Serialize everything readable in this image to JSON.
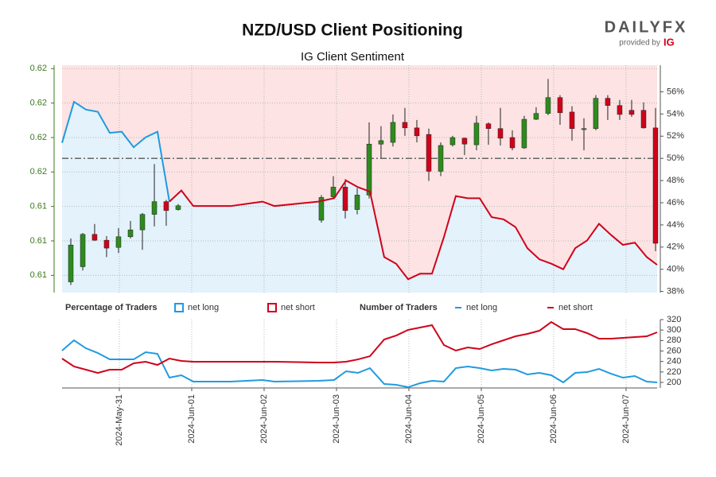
{
  "logo": {
    "brand": "DAILYFX",
    "provided_by": "provided by",
    "ig": "IG"
  },
  "chart_data": [
    {
      "type": "candlestick",
      "title": "NZD/USD Client Positioning",
      "subtitle": "IG Client Sentiment",
      "legend_title": "Percentage of Traders",
      "up_color": "#2e8b1e",
      "down_color": "#d0021b",
      "xlim": [
        0.209,
        8.429
      ],
      "ylim": [
        0.6125,
        0.6191
      ],
      "yticks": [
        {
          "value": 0.619,
          "label": "0.62"
        },
        {
          "value": 0.618,
          "label": "0.62"
        },
        {
          "value": 0.617,
          "label": "0.62"
        },
        {
          "value": 0.616,
          "label": "0.62"
        },
        {
          "value": 0.615,
          "label": "0.61"
        },
        {
          "value": 0.614,
          "label": "0.61"
        },
        {
          "value": 0.613,
          "label": "0.61"
        }
      ],
      "y2lim": [
        37.9,
        58.4
      ],
      "y2ticks": [
        {
          "value": 38,
          "label": "38%"
        },
        {
          "value": 40,
          "label": "40%"
        },
        {
          "value": 42,
          "label": "42%"
        },
        {
          "value": 44,
          "label": "44%"
        },
        {
          "value": 46,
          "label": "46%"
        },
        {
          "value": 48,
          "label": "48%"
        },
        {
          "value": 50,
          "label": "50%"
        },
        {
          "value": 52,
          "label": "52%"
        },
        {
          "value": 54,
          "label": "54%"
        },
        {
          "value": 56,
          "label": "56%"
        }
      ],
      "reference_line": 50,
      "candles": {
        "x": [
          0.33,
          0.495,
          0.659,
          0.824,
          0.989,
          1.154,
          1.319,
          1.484,
          1.648,
          1.813,
          3.791,
          3.956,
          4.121,
          4.286,
          4.451,
          4.615,
          4.78,
          4.945,
          5.11,
          5.275,
          5.44,
          5.604,
          5.769,
          5.934,
          6.099,
          6.264,
          6.429,
          6.593,
          6.758,
          6.923,
          7.088,
          7.253,
          7.418,
          7.582,
          7.747,
          7.912,
          8.077,
          8.242,
          8.407
        ],
        "open": [
          0.61281,
          0.61325,
          0.61419,
          0.61402,
          0.61381,
          0.61412,
          0.61432,
          0.61477,
          0.61514,
          0.61491,
          0.6146,
          0.61528,
          0.61556,
          0.61491,
          0.61533,
          0.61681,
          0.61686,
          0.61744,
          0.61728,
          0.61709,
          0.61602,
          0.61679,
          0.61698,
          0.61679,
          0.6174,
          0.61726,
          0.617,
          0.6167,
          0.61753,
          0.6177,
          0.61816,
          0.61774,
          0.61723,
          0.61726,
          0.61814,
          0.61793,
          0.61779,
          0.61779,
          0.61728
        ],
        "high": [
          0.61407,
          0.61423,
          0.61449,
          0.61414,
          0.61437,
          0.61458,
          0.61481,
          0.61623,
          0.61519,
          0.61507,
          0.61533,
          0.61588,
          0.61579,
          0.61553,
          0.61744,
          0.61733,
          0.61767,
          0.61786,
          0.61751,
          0.61726,
          0.61686,
          0.61705,
          0.617,
          0.61763,
          0.61744,
          0.61786,
          0.61721,
          0.61763,
          0.61788,
          0.6187,
          0.61823,
          0.61791,
          0.61756,
          0.61823,
          0.61823,
          0.61809,
          0.61809,
          0.61802,
          0.61786
        ],
        "low": [
          0.61272,
          0.61314,
          0.614,
          0.61353,
          0.61365,
          0.61407,
          0.61374,
          0.61442,
          0.61444,
          0.61488,
          0.61453,
          0.61521,
          0.61465,
          0.61477,
          0.61523,
          0.6164,
          0.61674,
          0.61705,
          0.61686,
          0.61574,
          0.61588,
          0.61674,
          0.61649,
          0.61663,
          0.61679,
          0.61677,
          0.61663,
          0.61667,
          0.61751,
          0.61765,
          0.61737,
          0.61691,
          0.61663,
          0.61721,
          0.61751,
          0.61751,
          0.6176,
          0.61726,
          0.6137
        ],
        "close": [
          0.61388,
          0.61419,
          0.61402,
          0.61379,
          0.61412,
          0.61432,
          0.61477,
          0.61514,
          0.61488,
          0.61502,
          0.61526,
          0.61556,
          0.61488,
          0.61533,
          0.61681,
          0.61691,
          0.61744,
          0.61728,
          0.61705,
          0.61602,
          0.61677,
          0.617,
          0.61681,
          0.61742,
          0.61726,
          0.61698,
          0.6167,
          0.61753,
          0.6177,
          0.61816,
          0.61772,
          0.61726,
          0.61726,
          0.61814,
          0.61793,
          0.61767,
          0.61767,
          0.61728,
          0.61393
        ]
      },
      "x": [
        0.209,
        0.374,
        0.538,
        0.703,
        0.868,
        1.033,
        1.198,
        1.363,
        1.527,
        1.692,
        1.857,
        2.022,
        2.538,
        2.978,
        3.143,
        3.747,
        3.967,
        4.132,
        4.297,
        4.462,
        4.659,
        4.824,
        4.989,
        5.154,
        5.319,
        5.484,
        5.648,
        5.813,
        5.978,
        6.143,
        6.308,
        6.473,
        6.637,
        6.802,
        6.967,
        7.132,
        7.297,
        7.462,
        7.626,
        7.791,
        7.956,
        8.121,
        8.286,
        8.429
      ],
      "series": [
        {
          "name": "net long",
          "color": "#1f9be0",
          "axis": "y2",
          "values": [
            51.4,
            55.1,
            54.4,
            54.2,
            52.3,
            52.4,
            51.0,
            51.9,
            52.4,
            46.1,
            null,
            null,
            null,
            null,
            null,
            null,
            null,
            null,
            null,
            null,
            null,
            null,
            null,
            null,
            null,
            null,
            null,
            null,
            null,
            null,
            null,
            null,
            null,
            null,
            null,
            null,
            null,
            null,
            null,
            null,
            null,
            null,
            null,
            null
          ]
        },
        {
          "name": "net short",
          "color": "#d0021b",
          "axis": "y2",
          "values": [
            null,
            null,
            null,
            null,
            null,
            null,
            null,
            null,
            null,
            46.1,
            47.1,
            45.7,
            45.7,
            46.1,
            45.7,
            46.1,
            46.4,
            48.0,
            47.4,
            47.0,
            41.1,
            40.5,
            39.1,
            39.6,
            39.6,
            42.9,
            46.6,
            46.4,
            46.4,
            44.7,
            44.5,
            43.8,
            41.9,
            40.9,
            40.5,
            40.0,
            41.9,
            42.6,
            44.1,
            43.1,
            42.2,
            42.4,
            41.1,
            40.4
          ]
        }
      ]
    },
    {
      "type": "line",
      "legend_title": "Number of Traders",
      "xlim": [
        0.209,
        8.429
      ],
      "xticks": [
        {
          "value": 1,
          "label": "2024-May-31"
        },
        {
          "value": 2,
          "label": "2024-Jun-01"
        },
        {
          "value": 3,
          "label": "2024-Jun-02"
        },
        {
          "value": 4,
          "label": "2024-Jun-03"
        },
        {
          "value": 5,
          "label": "2024-Jun-04"
        },
        {
          "value": 6,
          "label": "2024-Jun-05"
        },
        {
          "value": 7,
          "label": "2024-Jun-06"
        },
        {
          "value": 8,
          "label": "2024-Jun-07"
        }
      ],
      "ylim": [
        189.4,
        320
      ],
      "yticks": [
        200,
        220,
        240,
        260,
        280,
        300,
        320
      ],
      "x": [
        0.209,
        0.374,
        0.538,
        0.703,
        0.868,
        1.033,
        1.198,
        1.363,
        1.527,
        1.692,
        1.857,
        2.022,
        2.538,
        2.978,
        3.143,
        3.747,
        3.967,
        4.132,
        4.297,
        4.462,
        4.659,
        4.824,
        4.989,
        5.154,
        5.319,
        5.484,
        5.648,
        5.813,
        5.978,
        6.143,
        6.308,
        6.473,
        6.637,
        6.802,
        6.967,
        7.132,
        7.297,
        7.462,
        7.626,
        7.791,
        7.956,
        8.121,
        8.286,
        8.429
      ],
      "series": [
        {
          "name": "net long",
          "color": "#1f9be0",
          "values": [
            260.8,
            280.5,
            265.3,
            256.2,
            244,
            244,
            244,
            257.7,
            254.7,
            209.1,
            213.7,
            201.5,
            201.5,
            204.6,
            201.5,
            203,
            204.6,
            221.3,
            218.2,
            227.3,
            197,
            195.4,
            190.9,
            198.5,
            203,
            201.5,
            227.3,
            230.4,
            227.3,
            222.8,
            225.8,
            224.3,
            215.2,
            218.2,
            213.7,
            200,
            218.2,
            219.7,
            225.8,
            216.7,
            209.1,
            212.2,
            201.5,
            200
          ]
        },
        {
          "name": "net short",
          "color": "#d0021b",
          "values": [
            245.6,
            230.4,
            224.3,
            218.2,
            224.3,
            224.3,
            236.5,
            239.5,
            233.4,
            245.6,
            241,
            239.5,
            239.5,
            239.5,
            239.5,
            238,
            238,
            239.5,
            244,
            250.1,
            282,
            289.6,
            300.3,
            304.8,
            309.4,
            271.4,
            260.8,
            266.8,
            263.8,
            272.9,
            280.5,
            288.1,
            292.7,
            298.7,
            315.4,
            301.8,
            301.8,
            294.2,
            283.5,
            283.5,
            285.1,
            286.6,
            288.1,
            295.7
          ]
        }
      ]
    }
  ]
}
